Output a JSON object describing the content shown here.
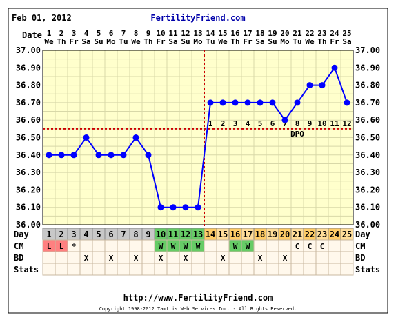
{
  "header": {
    "date": "Feb 01, 2012",
    "site": "FertilityFriend.com"
  },
  "footer": {
    "url": "http://www.FertilityFriend.com",
    "copyright": "Copyright 1998-2012 Tamtris Web Services Inc. - All Rights Reserved."
  },
  "row_labels": {
    "date": "Date",
    "day": "Day",
    "cm": "CM",
    "bd": "BD",
    "stats": "Stats"
  },
  "chart_data": {
    "type": "line",
    "title": "",
    "x": [
      1,
      2,
      3,
      4,
      5,
      6,
      7,
      8,
      9,
      10,
      11,
      12,
      13,
      14,
      15,
      16,
      17,
      18,
      19,
      20,
      21,
      22,
      23,
      24,
      25
    ],
    "dates": [
      "1",
      "2",
      "3",
      "4",
      "5",
      "6",
      "7",
      "8",
      "9",
      "10",
      "11",
      "12",
      "13",
      "14",
      "15",
      "16",
      "17",
      "18",
      "19",
      "20",
      "21",
      "22",
      "23",
      "24",
      "25"
    ],
    "weekdays": [
      "We",
      "Th",
      "Fr",
      "Sa",
      "Su",
      "Mo",
      "Tu",
      "We",
      "Th",
      "Fr",
      "Sa",
      "Su",
      "Mo",
      "Tu",
      "We",
      "Th",
      "Fr",
      "Sa",
      "Su",
      "Mo",
      "Tu",
      "We",
      "Th",
      "Fr",
      "Sa"
    ],
    "series": [
      {
        "values": [
          36.4,
          36.4,
          36.4,
          36.5,
          36.4,
          36.4,
          36.4,
          36.5,
          36.4,
          36.1,
          36.1,
          36.1,
          36.1,
          36.7,
          36.7,
          36.7,
          36.7,
          36.7,
          36.7,
          36.6,
          36.7,
          36.8,
          36.8,
          36.9,
          36.7
        ]
      }
    ],
    "ylim": [
      36.0,
      37.0
    ],
    "yticks": [
      "36.00",
      "36.10",
      "36.20",
      "36.30",
      "36.40",
      "36.50",
      "36.60",
      "36.70",
      "36.80",
      "36.90",
      "37.00"
    ],
    "coverline": 36.55,
    "ovulation_day": 13,
    "coverline_label": "DPO",
    "dpo_labels": [
      "1",
      "2",
      "3",
      "4",
      "5",
      "6",
      "7",
      "8",
      "9",
      "10",
      "11",
      "12"
    ],
    "cycle_days": [
      "1",
      "2",
      "3",
      "4",
      "5",
      "6",
      "7",
      "8",
      "9",
      "10",
      "11",
      "12",
      "13",
      "14",
      "15",
      "16",
      "17",
      "18",
      "19",
      "20",
      "21",
      "22",
      "23",
      "24",
      "25"
    ],
    "cycle_day_colors": {
      "pre": "#c8c8c8",
      "fertile": "#66cc66",
      "luteal_a": "#ffcc66",
      "luteal_b": "#ffdd99"
    },
    "cm": [
      "L",
      "L",
      "*",
      "",
      "",
      "",
      "",
      "",
      "",
      "W",
      "W",
      "W",
      "W",
      "",
      "",
      "W",
      "W",
      "",
      "",
      "",
      "C",
      "C",
      "C",
      "",
      ""
    ],
    "bd": [
      "",
      "",
      "",
      "X",
      "",
      "X",
      "",
      "X",
      "",
      "X",
      "",
      "X",
      "",
      "",
      "X",
      "",
      "",
      "X",
      "",
      "X",
      "",
      "",
      "",
      "",
      ""
    ],
    "colors": {
      "plot_bg": "#ffffcc",
      "grid": "#d8d8a8",
      "line": "#0000ff",
      "marker": "#0000ff",
      "coverline": "#cc0000",
      "cm_l": "#ff8080",
      "cm_w": "#66cc66"
    }
  }
}
